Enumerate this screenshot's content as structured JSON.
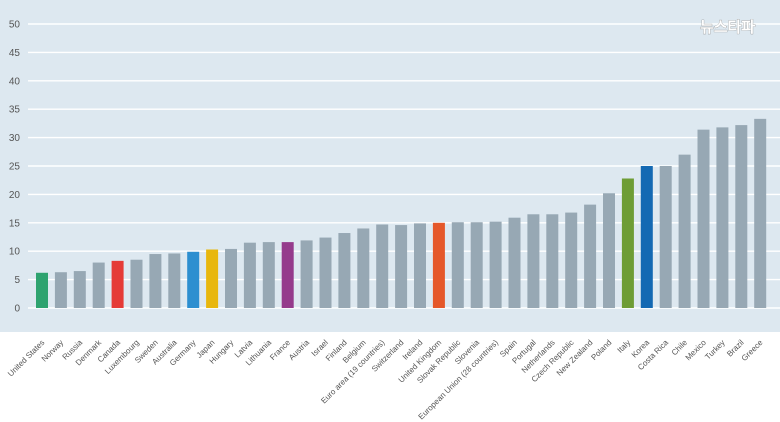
{
  "watermark": "뉴스타파",
  "colors": {
    "plot_background": "#dde8f0",
    "gridline": "#ffffff",
    "default_bar": "#97a8b4",
    "default_label": "#555555"
  },
  "chart_data": {
    "type": "bar",
    "title": "",
    "xlabel": "",
    "ylabel": "",
    "ylim": [
      0,
      50
    ],
    "yticks": [
      0,
      5,
      10,
      15,
      20,
      25,
      30,
      35,
      40,
      45,
      50
    ],
    "grid": true,
    "categories": [
      "United States",
      "Norway",
      "Russia",
      "Denmark",
      "Canada",
      "Luxembourg",
      "Sweden",
      "Australia",
      "Germany",
      "Japan",
      "Hungary",
      "Latvia",
      "Lithuania",
      "France",
      "Austria",
      "Israel",
      "Finland",
      "Belgium",
      "Euro area (19 countries)",
      "Switzerland",
      "Ireland",
      "United Kingdom",
      "Slovak Republic",
      "Slovenia",
      "European Union (28 countries)",
      "Spain",
      "Portugal",
      "Netherlands",
      "Czech Republic",
      "New Zealand",
      "Poland",
      "Italy",
      "Korea",
      "Costa Rica",
      "Chile",
      "Mexico",
      "Turkey",
      "Brazil",
      "Greece"
    ],
    "values": [
      6.2,
      6.3,
      6.5,
      8.0,
      8.3,
      8.5,
      9.5,
      9.6,
      9.9,
      10.3,
      10.4,
      11.5,
      11.6,
      11.6,
      11.9,
      12.4,
      13.2,
      14.0,
      14.7,
      14.6,
      14.9,
      15.0,
      15.1,
      15.1,
      15.2,
      15.9,
      16.5,
      16.5,
      16.8,
      18.2,
      20.2,
      22.8,
      25.0,
      25.0,
      27.0,
      31.4,
      31.8,
      32.2,
      33.3
    ],
    "bar_colors": [
      "#2ea36f",
      "#97a8b4",
      "#97a8b4",
      "#97a8b4",
      "#e53b37",
      "#97a8b4",
      "#97a8b4",
      "#97a8b4",
      "#2d8fd0",
      "#e8b70e",
      "#97a8b4",
      "#97a8b4",
      "#97a8b4",
      "#953b8c",
      "#97a8b4",
      "#97a8b4",
      "#97a8b4",
      "#97a8b4",
      "#97a8b4",
      "#97a8b4",
      "#97a8b4",
      "#e5582a",
      "#97a8b4",
      "#97a8b4",
      "#97a8b4",
      "#97a8b4",
      "#97a8b4",
      "#97a8b4",
      "#97a8b4",
      "#97a8b4",
      "#97a8b4",
      "#6e9d35",
      "#1369b3",
      "#97a8b4",
      "#97a8b4",
      "#97a8b4",
      "#97a8b4",
      "#97a8b4",
      "#97a8b4"
    ],
    "label_colors": [
      "#2ea36f",
      "#555555",
      "#555555",
      "#555555",
      "#e53b37",
      "#555555",
      "#555555",
      "#555555",
      "#2d8fd0",
      "#e8b70e",
      "#555555",
      "#555555",
      "#555555",
      "#953b8c",
      "#555555",
      "#555555",
      "#555555",
      "#555555",
      "#555555",
      "#555555",
      "#555555",
      "#e5582a",
      "#555555",
      "#555555",
      "#555555",
      "#555555",
      "#555555",
      "#555555",
      "#555555",
      "#555555",
      "#555555",
      "#6e9d35",
      "#1369b3",
      "#555555",
      "#555555",
      "#555555",
      "#555555",
      "#555555",
      "#555555"
    ]
  }
}
